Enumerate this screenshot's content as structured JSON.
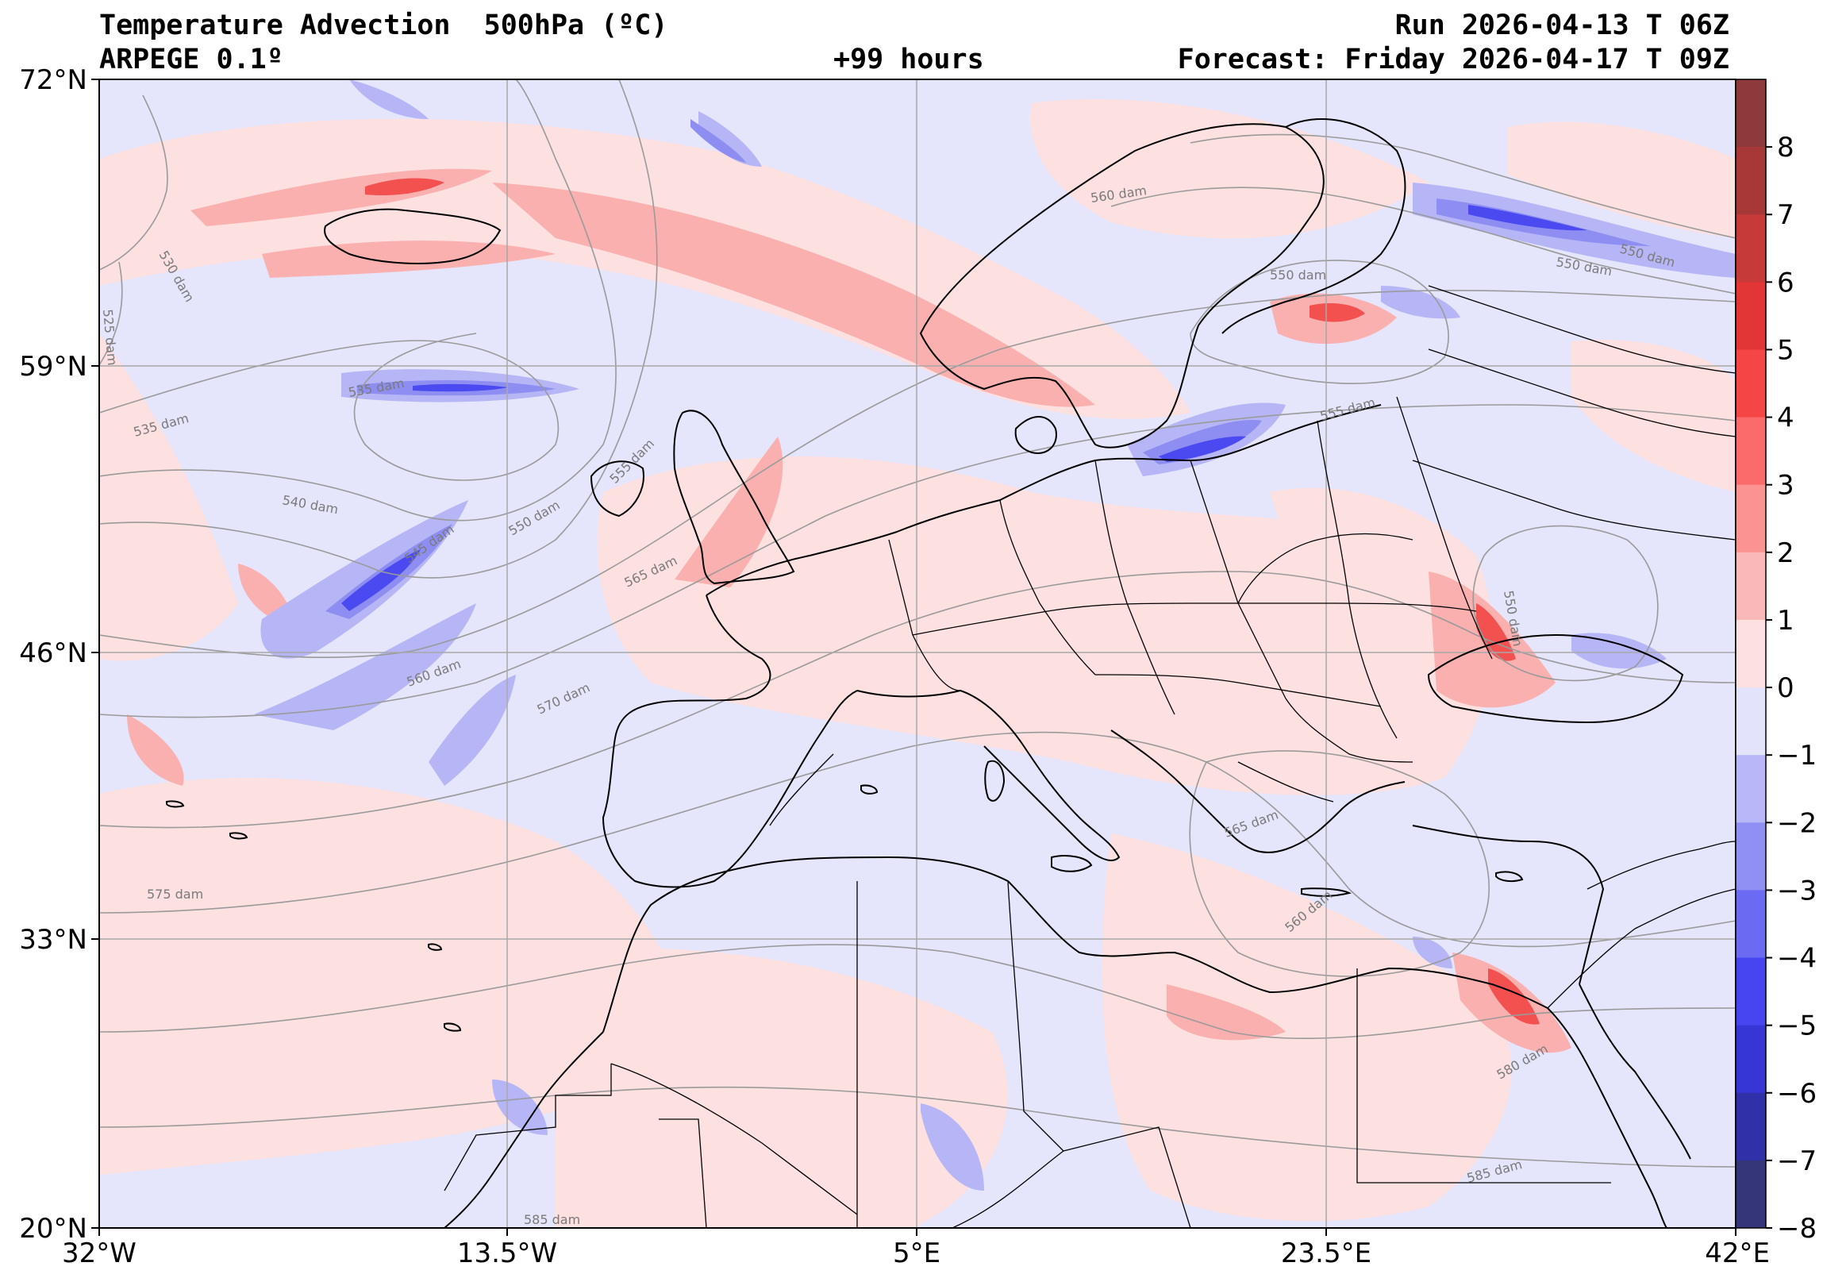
{
  "header": {
    "title_left_1": "Temperature Advection  500hPa (ºC)",
    "title_left_2": "ARPEGE 0.1º",
    "title_center_2": "+99 hours",
    "title_right_1": "Run 2026-04-13 T 06Z",
    "title_right_2": "Forecast: Friday 2026-04-17 T 09Z"
  },
  "axes": {
    "lat_labels": [
      "72°N",
      "59°N",
      "46°N",
      "33°N",
      "20°N"
    ],
    "lon_labels": [
      "32°W",
      "13.5°W",
      "5°E",
      "23.5°E",
      "42°E"
    ]
  },
  "colorbar": {
    "ticks": [
      "8",
      "7",
      "6",
      "5",
      "4",
      "3",
      "2",
      "1",
      "0",
      "−1",
      "−2",
      "−3",
      "−4",
      "−5",
      "−6",
      "−7",
      "−8"
    ],
    "bands": [
      "#8e3a3a",
      "#a83838",
      "#c63a3a",
      "#e23535",
      "#f54545",
      "#fb6b6b",
      "#fb9393",
      "#fbb8b8",
      "#fde0e0",
      "#e3e3fc",
      "#b8b8f8",
      "#8f8ff4",
      "#6a6af2",
      "#4646f0",
      "#3636d6",
      "#3030a8",
      "#35357a"
    ]
  },
  "colors": {
    "background_neutral": "#e5e5fb",
    "warm_light": "#fde0e0",
    "warm_mid": "#fbb0b0",
    "warm_strong": "#f35050",
    "cold_light": "#b6b6f6",
    "cold_mid": "#8e8ef2",
    "cold_strong": "#4a4af0"
  },
  "contour_labels": [
    "530 dam",
    "525 dam",
    "535 dam",
    "535 dam",
    "540 dam",
    "545 dam",
    "550 dam",
    "555 dam",
    "560 dam",
    "565 dam",
    "570 dam",
    "575 dam",
    "585 dam",
    "560 dam",
    "550 dam",
    "550 dam",
    "555 dam",
    "550 dam",
    "565 dam",
    "560 dam",
    "580 dam",
    "585 dam",
    "550 dam"
  ]
}
